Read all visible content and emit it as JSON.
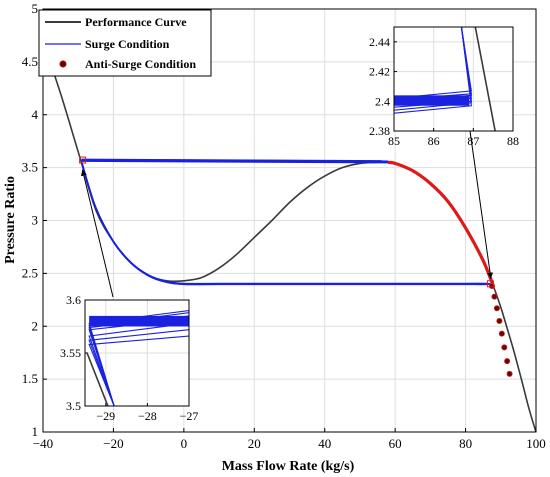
{
  "chart_data": {
    "type": "line",
    "xlabel": "Mass Flow Rate (kg/s)",
    "ylabel": "Pressure Ratio",
    "xlim": [
      -40,
      100
    ],
    "ylim": [
      1,
      5
    ],
    "xticks": [
      -40,
      -20,
      0,
      20,
      40,
      60,
      80,
      100
    ],
    "yticks": [
      1,
      1.5,
      2,
      2.5,
      3,
      3.5,
      4,
      4.5,
      5
    ],
    "xtick_labels": [
      "−40",
      "−20",
      "0",
      "20",
      "40",
      "60",
      "80",
      "100"
    ],
    "ytick_labels": [
      "1",
      "1.5",
      "2",
      "2.5",
      "3",
      "3.5",
      "4",
      "4.5",
      "5"
    ],
    "grid": true,
    "legend_position": "top-left",
    "series": [
      {
        "name": "Performance Curve",
        "color": "#3a3a3a",
        "x": [
          -40,
          -35,
          -30,
          -25,
          -20,
          -15,
          -10,
          -5,
          0,
          5,
          10,
          15,
          20,
          25,
          30,
          35,
          40,
          45,
          50,
          55,
          58,
          60,
          65,
          70,
          75,
          80,
          85,
          88,
          90,
          92,
          94,
          96,
          98,
          100
        ],
        "y": [
          4.7,
          4.2,
          3.65,
          3.1,
          2.8,
          2.6,
          2.48,
          2.43,
          2.43,
          2.46,
          2.55,
          2.68,
          2.84,
          3.0,
          3.17,
          3.31,
          3.42,
          3.5,
          3.54,
          3.55,
          3.55,
          3.54,
          3.47,
          3.35,
          3.18,
          2.93,
          2.62,
          2.37,
          2.18,
          1.96,
          1.73,
          1.48,
          1.22,
          1.0
        ]
      },
      {
        "name": "Surge Condition",
        "color": "#1a22e0",
        "x": [
          -29,
          -25,
          -20,
          -15,
          -10,
          -5,
          0,
          10,
          20,
          40,
          60,
          70,
          80,
          86,
          87,
          86,
          80,
          60,
          40,
          20,
          0,
          -20,
          -29
        ],
        "y": [
          3.55,
          3.12,
          2.8,
          2.6,
          2.48,
          2.42,
          2.4,
          2.4,
          2.4,
          2.4,
          2.4,
          2.4,
          2.4,
          2.4,
          2.4,
          2.4,
          3.0,
          3.57,
          3.57,
          3.57,
          3.57,
          3.57,
          3.57
        ]
      },
      {
        "name": "Anti-Surge Condition",
        "color": "#5a0a0a",
        "x": [
          87.5,
          88.2,
          88.9,
          89.6,
          90.3,
          91.0,
          91.8,
          92.5
        ],
        "y": [
          2.38,
          2.28,
          2.17,
          2.05,
          1.93,
          1.8,
          1.67,
          1.55
        ]
      }
    ],
    "insets": [
      {
        "name": "top-right zoom",
        "xlim": [
          85,
          88
        ],
        "ylim": [
          2.38,
          2.45
        ],
        "xticks": [
          85,
          86,
          87,
          88
        ],
        "yticks": [
          2.38,
          2.4,
          2.42,
          2.44
        ],
        "xtick_labels": [
          "85",
          "86",
          "87",
          "88"
        ],
        "ytick_labels": [
          "2.38",
          "2.4",
          "2.42",
          "2.44"
        ],
        "performance": {
          "x": [
            87.05,
            87.55
          ],
          "y": [
            2.45,
            2.38
          ]
        },
        "surge_lines": [
          {
            "y0": 2.401,
            "y1": 2.405
          },
          {
            "y0": 2.399,
            "y1": 2.404
          },
          {
            "y0": 2.398,
            "y1": 2.402
          },
          {
            "y0": 2.396,
            "y1": 2.4
          },
          {
            "y0": 2.394,
            "y1": 2.399
          },
          {
            "y0": 2.392,
            "y1": 2.397
          },
          {
            "y0": 2.402,
            "y1": 2.407
          }
        ]
      },
      {
        "name": "bottom-left zoom",
        "xlim": [
          -29.5,
          -27
        ],
        "ylim": [
          3.5,
          3.6
        ],
        "xticks": [
          -29,
          -28,
          -27
        ],
        "yticks": [
          3.5,
          3.55,
          3.6
        ],
        "xtick_labels": [
          "−29",
          "−28",
          "−27"
        ],
        "ytick_labels": [
          "3.5",
          "3.55",
          "3.6"
        ],
        "performance": {
          "x": [
            -29.45,
            -28.95
          ],
          "y": [
            3.55,
            3.5
          ]
        },
        "surge_lines": [
          {
            "y0": 3.578,
            "y1": 3.59
          },
          {
            "y0": 3.576,
            "y1": 3.588
          },
          {
            "y0": 3.574,
            "y1": 3.585
          },
          {
            "y0": 3.572,
            "y1": 3.582
          },
          {
            "y0": 3.566,
            "y1": 3.578
          },
          {
            "y0": 3.562,
            "y1": 3.572
          },
          {
            "y0": 3.558,
            "y1": 3.566
          }
        ]
      }
    ]
  }
}
